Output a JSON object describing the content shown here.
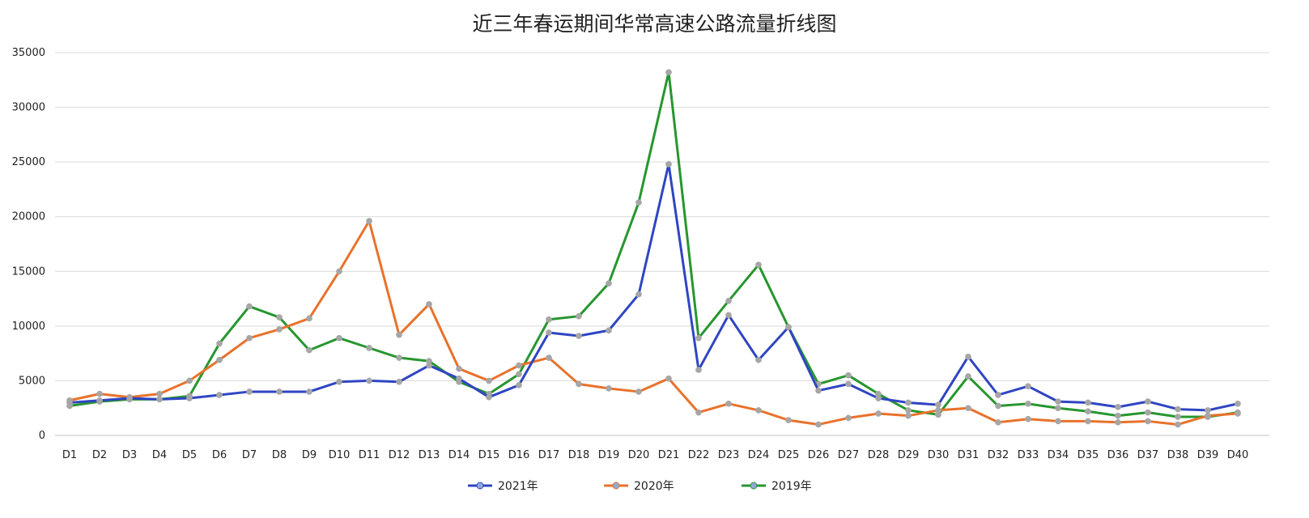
{
  "chart_data": {
    "type": "line",
    "title": "近三年春运期间华常高速公路流量折线图",
    "xlabel": "",
    "ylabel": "",
    "ylim": [
      0,
      35000
    ],
    "yticks": [
      0,
      5000,
      10000,
      15000,
      20000,
      25000,
      30000,
      35000
    ],
    "grid": true,
    "legend_position": "bottom",
    "categories": [
      "D1",
      "D2",
      "D3",
      "D4",
      "D5",
      "D6",
      "D7",
      "D8",
      "D9",
      "D10",
      "D11",
      "D12",
      "D13",
      "D14",
      "D15",
      "D16",
      "D17",
      "D18",
      "D19",
      "D20",
      "D21",
      "D22",
      "D23",
      "D24",
      "D25",
      "D26",
      "D27",
      "D28",
      "D29",
      "D30",
      "D31",
      "D32",
      "D33",
      "D34",
      "D35",
      "D36",
      "D37",
      "D38",
      "D39",
      "D40"
    ],
    "series": [
      {
        "name": "2021年",
        "color": "#2f45c3",
        "values": [
          3000,
          3200,
          3400,
          3300,
          3400,
          3700,
          4000,
          4000,
          4000,
          4900,
          5000,
          4900,
          6400,
          5200,
          3500,
          4600,
          9400,
          9100,
          9600,
          12900,
          24800,
          6000,
          11000,
          6900,
          9900,
          4100,
          4700,
          3400,
          3000,
          2800,
          7200,
          3700,
          4500,
          3100,
          3000,
          2600,
          3100,
          2400,
          2300,
          2900
        ]
      },
      {
        "name": "2020年",
        "color": "#e8722b",
        "values": [
          3200,
          3800,
          3500,
          3800,
          5000,
          6900,
          8900,
          9700,
          10700,
          15000,
          19600,
          9200,
          12000,
          6100,
          5000,
          6400,
          7100,
          4700,
          4300,
          4000,
          5200,
          2100,
          2900,
          2300,
          1400,
          1000,
          1600,
          2000,
          1800,
          2300,
          2500,
          1200,
          1500,
          1300,
          1300,
          1200,
          1300,
          1000,
          1800,
          2000
        ]
      },
      {
        "name": "2019年",
        "color": "#27962f",
        "values": [
          2700,
          3100,
          3300,
          3300,
          3600,
          8400,
          11800,
          10800,
          7800,
          8900,
          8000,
          7100,
          6800,
          4900,
          3800,
          5600,
          10600,
          10900,
          13900,
          21300,
          33200,
          8900,
          12300,
          15600,
          9900,
          4700,
          5500,
          3800,
          2300,
          1900,
          5400,
          2700,
          2900,
          2500,
          2200,
          1800,
          2100,
          1700,
          1700,
          2100
        ]
      }
    ]
  }
}
